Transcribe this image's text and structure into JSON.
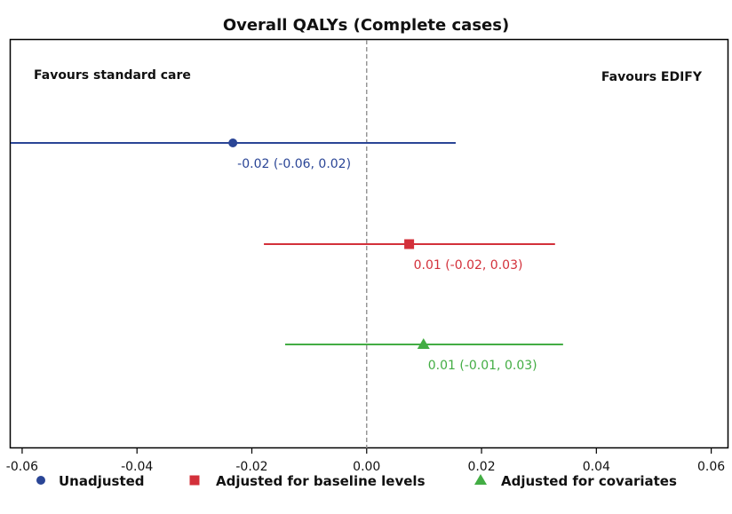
{
  "chart_data": {
    "type": "scatter",
    "title": "Overall QALYs (Complete cases)",
    "xlabel": "",
    "ylabel": "",
    "xlim": [
      -0.062,
      0.063
    ],
    "x_ticks": [
      -0.06,
      -0.04,
      -0.02,
      0.0,
      0.02,
      0.04,
      0.06
    ],
    "x_tick_labels": [
      "-0.06",
      "-0.04",
      "-0.02",
      "0.00",
      "0.02",
      "0.04",
      "0.06"
    ],
    "reference_line_x": 0,
    "grid": false,
    "legend_position": "bottom",
    "annotations": {
      "left": "Favours standard care",
      "right": "Favours EDIFY"
    },
    "series": [
      {
        "name": "Unadjusted",
        "marker": "circle",
        "color": "#2a4596",
        "estimate": -0.0233,
        "ci_low": -0.062,
        "ci_high": 0.0155,
        "label": "-0.02 (-0.06, 0.02)"
      },
      {
        "name": "Adjusted for baseline levels",
        "marker": "square",
        "color": "#d3303a",
        "estimate": 0.0074,
        "ci_low": -0.0179,
        "ci_high": 0.0328,
        "label": "0.01 (-0.02, 0.03)"
      },
      {
        "name": "Adjusted for covariates",
        "marker": "triangle",
        "color": "#43ad44",
        "estimate": 0.0099,
        "ci_low": -0.0142,
        "ci_high": 0.0342,
        "label": "0.01 (-0.01, 0.03)"
      }
    ]
  }
}
